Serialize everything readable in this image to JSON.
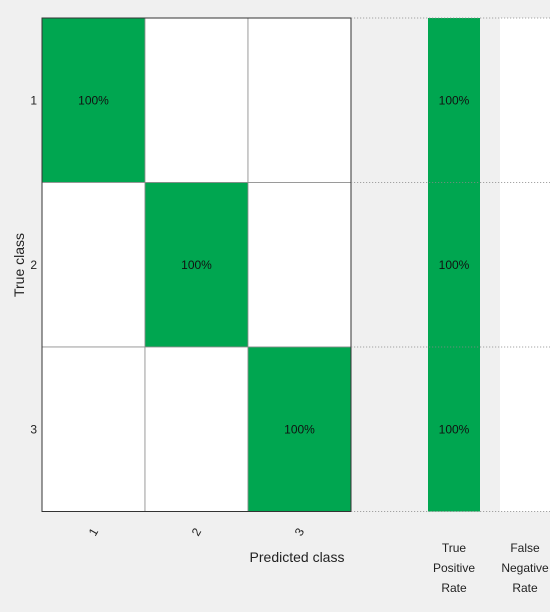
{
  "chart_data": {
    "type": "heatmap",
    "title": "",
    "xlabel": "Predicted class",
    "ylabel": "True class",
    "x_categories": [
      "1",
      "2",
      "3"
    ],
    "y_categories": [
      "1",
      "2",
      "3"
    ],
    "cells": [
      [
        "100%",
        "",
        ""
      ],
      [
        "",
        "100%",
        ""
      ],
      [
        "",
        "",
        "100%"
      ]
    ],
    "values": [
      [
        1,
        0,
        0
      ],
      [
        0,
        1,
        0
      ],
      [
        0,
        0,
        1
      ]
    ],
    "row_summary": {
      "headers": [
        [
          "True",
          "Positive",
          "Rate"
        ],
        [
          "False",
          "Negative",
          "Rate"
        ]
      ],
      "true_positive_rate": [
        "100%",
        "100%",
        "100%"
      ],
      "false_negative_rate": [
        "",
        "",
        ""
      ]
    },
    "colors": {
      "high": "#00a650",
      "low": "#ffffff",
      "background": "#f0f0f0",
      "grid": "#8c8c8c"
    }
  }
}
